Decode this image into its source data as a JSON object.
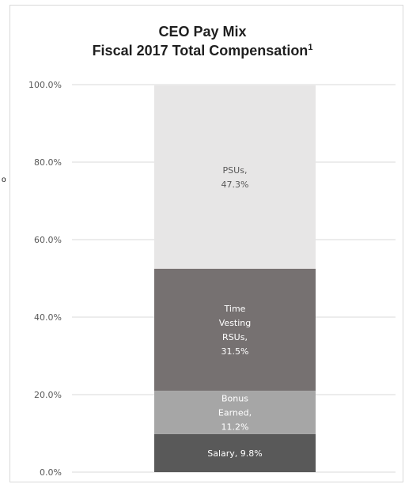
{
  "chart_data": {
    "type": "bar",
    "stacked": true,
    "title_line1": "CEO Pay Mix",
    "title_line2": "Fiscal 2017 Total Compensation",
    "title_superscript": "1",
    "ylim": [
      0,
      100
    ],
    "grid": true,
    "y_ticks": [
      "0.0%",
      "20.0%",
      "40.0%",
      "60.0%",
      "80.0%",
      "100.0%"
    ],
    "y_tick_values": [
      0,
      20,
      40,
      60,
      80,
      100
    ],
    "series": [
      {
        "value": 9.8,
        "label_lines": [
          "Salary, 9.8%"
        ],
        "color": "#595959",
        "text_color": "#ffffff"
      },
      {
        "value": 11.2,
        "label_lines": [
          "Bonus",
          "Earned,",
          "11.2%"
        ],
        "color": "#a6a6a6",
        "text_color": "#ffffff"
      },
      {
        "value": 31.5,
        "label_lines": [
          "Time",
          "Vesting",
          "RSUs,",
          "31.5%"
        ],
        "color": "#767171",
        "text_color": "#ffffff"
      },
      {
        "value": 47.3,
        "label_lines": [
          "PSUs,",
          "47.3%"
        ],
        "color": "#e7e6e6",
        "text_color": "#595959"
      }
    ]
  },
  "side_mark": "o"
}
